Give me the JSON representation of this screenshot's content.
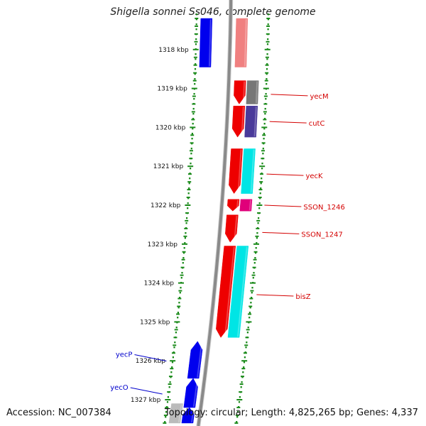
{
  "header": {
    "title": "Shigella sonnei Ss046, complete genome"
  },
  "footer": {
    "accession": "Accession: NC_007384",
    "topology": "Topology: circular; Length: 4,825,265 bp; Genes: 4,337"
  },
  "colors": {
    "backbone": "#8a8a8a",
    "ruler_dots": "#1a8a1a",
    "forward_label": "#d40000",
    "reverse_label": "#0000cc",
    "gene_red": "#ee0000",
    "gene_blue": "#0000ee",
    "gene_cyan": "#00e5e5",
    "gene_grey": "#777777",
    "gene_navy": "#4a3a9a",
    "gene_magenta": "#e0007a",
    "gene_pink": "#f08080",
    "gene_lightgrey": "#bbbbbb"
  },
  "ticks": [
    {
      "kbp": 1318,
      "label": "1318 kbp"
    },
    {
      "kbp": 1319,
      "label": "1319 kbp"
    },
    {
      "kbp": 1320,
      "label": "1320 kbp"
    },
    {
      "kbp": 1321,
      "label": "1321 kbp"
    },
    {
      "kbp": 1322,
      "label": "1322 kbp"
    },
    {
      "kbp": 1323,
      "label": "1323 kbp"
    },
    {
      "kbp": 1324,
      "label": "1324 kbp"
    },
    {
      "kbp": 1325,
      "label": "1325 kbp"
    },
    {
      "kbp": 1326,
      "label": "1326 kbp"
    },
    {
      "kbp": 1327,
      "label": "1327 kbp"
    }
  ],
  "features": [
    {
      "name": "",
      "strand": "forward",
      "ring": 0,
      "start": 1317.2,
      "end": 1318.45,
      "color": "gene_pink",
      "arrow": false
    },
    {
      "name": "",
      "strand": "reverse",
      "ring": 1,
      "start": 1317.2,
      "end": 1318.45,
      "color": "gene_blue",
      "arrow": false
    },
    {
      "name": "",
      "strand": "forward",
      "ring": 0,
      "start": 1318.8,
      "end": 1319.4,
      "color": "gene_red",
      "arrow": true
    },
    {
      "name": "",
      "strand": "forward",
      "ring": 1,
      "start": 1318.8,
      "end": 1319.4,
      "color": "gene_grey",
      "arrow": false
    },
    {
      "name": "",
      "strand": "forward",
      "ring": 0,
      "start": 1319.45,
      "end": 1320.25,
      "color": "gene_red",
      "arrow": true
    },
    {
      "name": "",
      "strand": "forward",
      "ring": 1,
      "start": 1319.45,
      "end": 1320.25,
      "color": "gene_navy",
      "arrow": false
    },
    {
      "name": "",
      "strand": "forward",
      "ring": 0,
      "start": 1320.55,
      "end": 1321.7,
      "color": "gene_red",
      "arrow": true
    },
    {
      "name": "",
      "strand": "forward",
      "ring": 1,
      "start": 1320.55,
      "end": 1321.7,
      "color": "gene_cyan",
      "arrow": false
    },
    {
      "name": "",
      "strand": "forward",
      "ring": 0,
      "start": 1321.85,
      "end": 1322.15,
      "color": "gene_red",
      "arrow": true
    },
    {
      "name": "",
      "strand": "forward",
      "ring": 1,
      "start": 1321.85,
      "end": 1322.15,
      "color": "gene_magenta",
      "arrow": false
    },
    {
      "name": "",
      "strand": "forward",
      "ring": 0,
      "start": 1322.25,
      "end": 1322.95,
      "color": "gene_red",
      "arrow": true
    },
    {
      "name": "",
      "strand": "forward",
      "ring": 0,
      "start": 1323.05,
      "end": 1325.4,
      "color": "gene_red",
      "arrow": true
    },
    {
      "name": "",
      "strand": "forward",
      "ring": 1,
      "start": 1323.05,
      "end": 1325.4,
      "color": "gene_cyan",
      "arrow": false
    },
    {
      "name": "",
      "strand": "reverse",
      "ring": 0,
      "start": 1325.5,
      "end": 1326.45,
      "color": "gene_blue",
      "arrow": true
    },
    {
      "name": "",
      "strand": "reverse",
      "ring": 0,
      "start": 1326.45,
      "end": 1327.2,
      "color": "gene_blue",
      "arrow": true
    },
    {
      "name": "",
      "strand": "reverse",
      "ring": 1,
      "start": 1327.1,
      "end": 1327.6,
      "color": "gene_lightgrey",
      "arrow": false
    },
    {
      "name": "",
      "strand": "reverse",
      "ring": 0,
      "start": 1327.2,
      "end": 1327.6,
      "color": "gene_blue",
      "arrow": true
    }
  ],
  "gene_labels": [
    {
      "name": "yecM",
      "strand": "forward",
      "kbp": 1319.15
    },
    {
      "name": "cutC",
      "strand": "forward",
      "kbp": 1319.85
    },
    {
      "name": "yecK",
      "strand": "forward",
      "kbp": 1321.2
    },
    {
      "name": "SSON_1246",
      "strand": "forward",
      "kbp": 1322.0
    },
    {
      "name": "SSON_1247",
      "strand": "forward",
      "kbp": 1322.7
    },
    {
      "name": "bisZ",
      "strand": "forward",
      "kbp": 1324.3
    },
    {
      "name": "yecP",
      "strand": "reverse",
      "kbp": 1325.95
    },
    {
      "name": "yecO",
      "strand": "reverse",
      "kbp": 1326.8
    }
  ]
}
